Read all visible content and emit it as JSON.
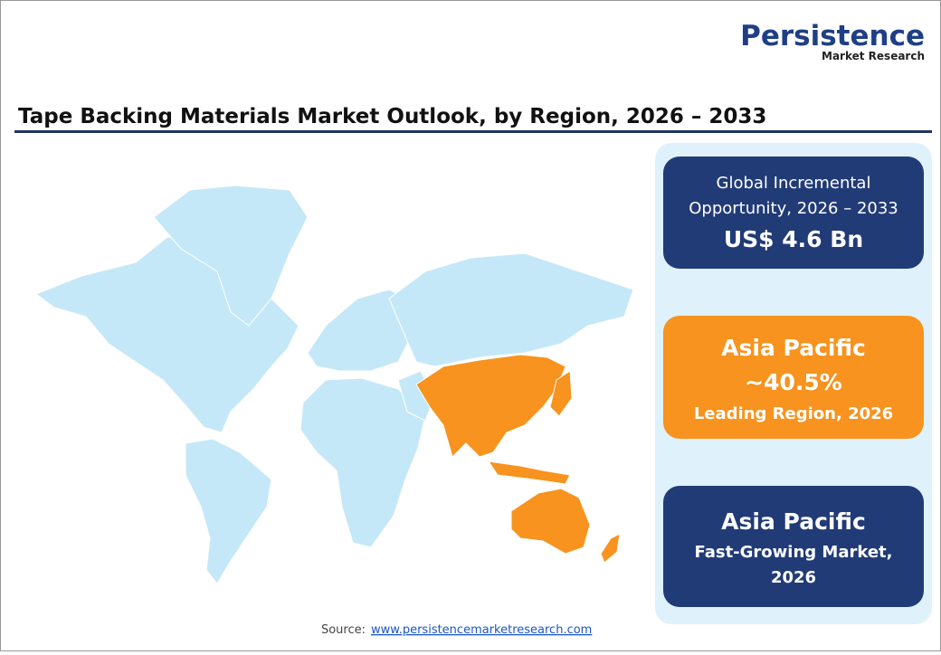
{
  "logo": {
    "name": "Persistence",
    "tagline": "Market Research"
  },
  "title": "Tape Backing Materials Market Outlook, by Region, 2026 – 2033",
  "cards": [
    {
      "lines": [
        "Global Incremental",
        "Opportunity, 2026 – 2033"
      ],
      "value": "US$ 4.6 Bn"
    },
    {
      "region": "Asia Pacific",
      "value": "~40.5%",
      "caption": "Leading Region, 2026"
    },
    {
      "region": "Asia Pacific",
      "lines": [
        "Fast-Growing Market,",
        "2026"
      ]
    }
  ],
  "source": {
    "label": "Source:",
    "link": "www.persistencemarketresearch.com"
  }
}
